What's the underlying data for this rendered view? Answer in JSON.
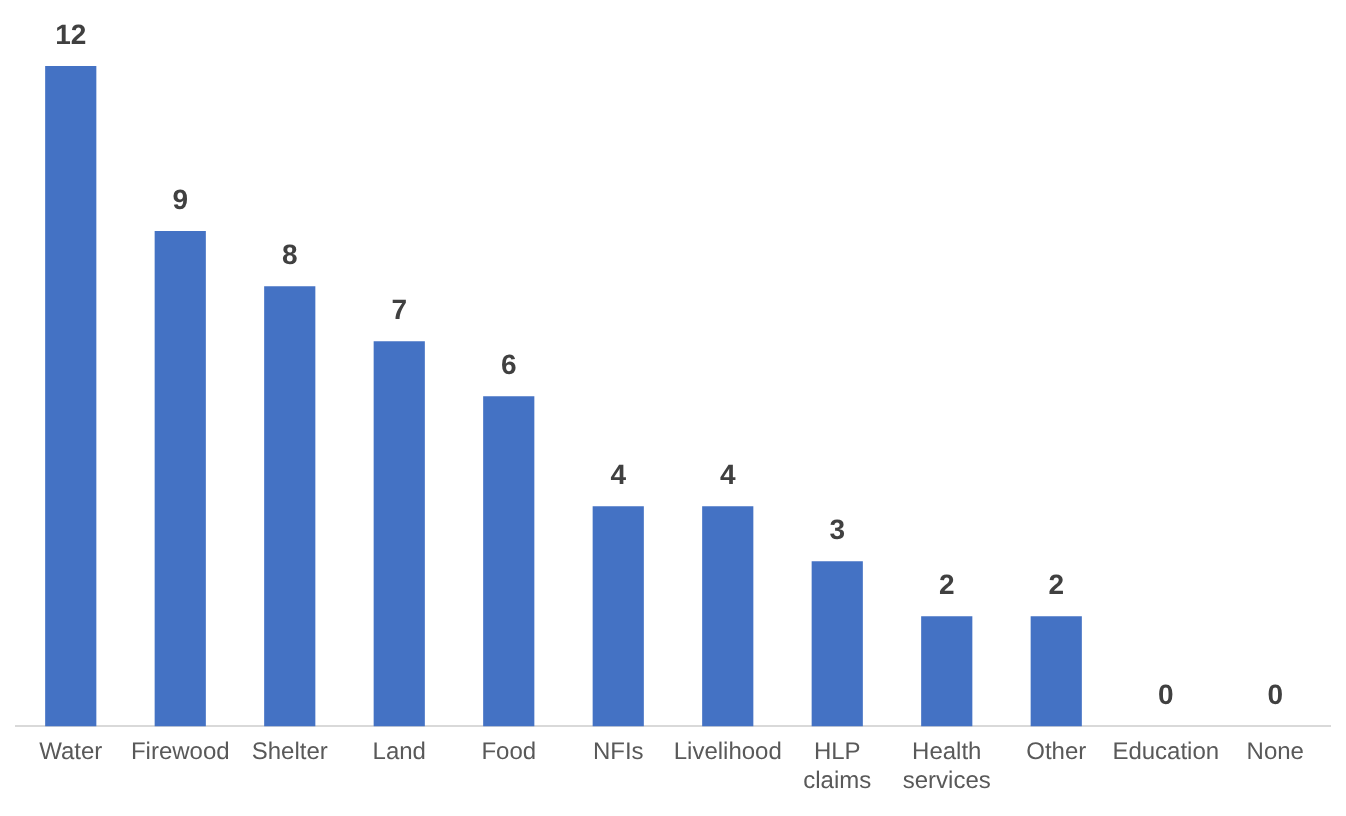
{
  "chart_data": {
    "type": "bar",
    "categories": [
      "Water",
      "Firewood",
      "Shelter",
      "Land",
      "Food",
      "NFIs",
      "Livelihood",
      "HLP claims",
      "Health services",
      "Other",
      "Education",
      "None"
    ],
    "values": [
      12,
      9,
      8,
      7,
      6,
      4,
      4,
      3,
      2,
      2,
      0,
      0
    ],
    "color": "#4472c4",
    "data_labels": true,
    "grid": false,
    "legend": false
  }
}
